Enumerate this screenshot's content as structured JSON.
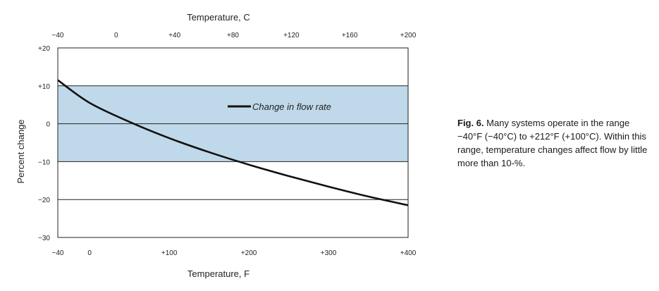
{
  "chart_data": {
    "type": "line",
    "x_label": "Temperature, F",
    "top_label": "Temperature, C",
    "y_label": "Percent change",
    "x_range": [
      -40,
      400
    ],
    "y_range": [
      -30,
      20
    ],
    "x_ticks": [
      {
        "value": -40,
        "label": "−40"
      },
      {
        "value": 0,
        "label": "0"
      },
      {
        "value": 100,
        "label": "+100"
      },
      {
        "value": 200,
        "label": "+200"
      },
      {
        "value": 300,
        "label": "+300"
      },
      {
        "value": 400,
        "label": "+400"
      }
    ],
    "top_ticks": [
      {
        "value": -40,
        "label": "−40"
      },
      {
        "value": 0,
        "label": "0"
      },
      {
        "value": 40,
        "label": "+40"
      },
      {
        "value": 80,
        "label": "+80"
      },
      {
        "value": 120,
        "label": "+120"
      },
      {
        "value": 160,
        "label": "+160"
      },
      {
        "value": 200,
        "label": "+200"
      }
    ],
    "y_ticks": [
      {
        "value": 20,
        "label": "+20"
      },
      {
        "value": 10,
        "label": "+10"
      },
      {
        "value": 0,
        "label": "0"
      },
      {
        "value": -10,
        "label": "−10"
      },
      {
        "value": -20,
        "label": "−20"
      },
      {
        "value": -30,
        "label": "−30"
      }
    ],
    "band": {
      "from": -10,
      "to": 10,
      "color": "#bfd9ea"
    },
    "series": [
      {
        "name": "Change in flow rate",
        "color": "#111111",
        "x": [
          -40,
          0,
          50,
          100,
          150,
          200,
          250,
          300,
          350,
          400
        ],
        "y": [
          11.5,
          5.5,
          0.5,
          -3.8,
          -7.5,
          -10.8,
          -13.8,
          -16.6,
          -19.2,
          -21.5
        ]
      }
    ],
    "grid": "horizontal"
  },
  "caption": {
    "label": "Fig. 6.",
    "text": " Many systems operate in the range −40°F (−40°C) to +212°F (+100°C). Within this range, temperature changes affect flow by little more than 10-%."
  }
}
